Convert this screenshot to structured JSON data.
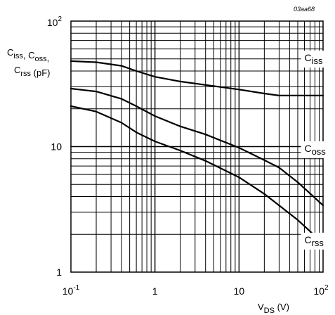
{
  "chart_data": {
    "type": "line",
    "figure_id": "03aa68",
    "x_scale": "log",
    "y_scale": "log",
    "xlim": [
      0.1,
      100
    ],
    "ylim": [
      1,
      100
    ],
    "grid": true,
    "xlabel": {
      "main": "V",
      "sub": "DS",
      "unit": " (V)"
    },
    "ylabel": {
      "line1": [
        {
          "main": "C",
          "sub": "iss"
        },
        {
          "text": ", "
        },
        {
          "main": "C",
          "sub": "oss"
        },
        {
          "text": ","
        }
      ],
      "line2": [
        {
          "main": "C",
          "sub": "rss"
        },
        {
          "text": " (pF)"
        }
      ]
    },
    "x_ticks": [
      {
        "value": 0.1,
        "base": "10",
        "exp": "-1"
      },
      {
        "value": 1,
        "base": "1",
        "exp": ""
      },
      {
        "value": 10,
        "base": "10",
        "exp": ""
      },
      {
        "value": 100,
        "base": "10",
        "exp": "2"
      }
    ],
    "y_ticks": [
      {
        "value": 1,
        "base": "1",
        "exp": ""
      },
      {
        "value": 10,
        "base": "10",
        "exp": ""
      },
      {
        "value": 100,
        "base": "10",
        "exp": "2"
      }
    ],
    "series": [
      {
        "name": "Ciss",
        "label_main": "C",
        "label_sub": "iss",
        "label_at": [
          60,
          48.5
        ],
        "x": [
          0.1,
          0.2,
          0.4,
          0.6,
          1,
          2,
          4,
          10,
          20,
          30,
          50,
          100
        ],
        "y": [
          48,
          47,
          44,
          40,
          36,
          33,
          31,
          28.5,
          26.5,
          25.5,
          25.5,
          25.5
        ]
      },
      {
        "name": "Coss",
        "label_main": "C",
        "label_sub": "oss",
        "label_at": [
          60,
          9.2
        ],
        "x": [
          0.1,
          0.2,
          0.4,
          0.6,
          1,
          2,
          4,
          10,
          20,
          30,
          50,
          100
        ],
        "y": [
          29,
          27.5,
          24,
          21,
          17.5,
          14.5,
          12.5,
          9.8,
          7.8,
          6.8,
          5.2,
          3.4
        ]
      },
      {
        "name": "Crss",
        "label_main": "C",
        "label_sub": "rss",
        "label_at": [
          60,
          1.72
        ],
        "x": [
          0.1,
          0.2,
          0.4,
          0.6,
          1,
          2,
          4,
          10,
          20,
          30,
          50,
          100
        ],
        "y": [
          21,
          19,
          15.5,
          13,
          11,
          9.3,
          7.7,
          5.7,
          4.2,
          3.4,
          2.6,
          1.7
        ]
      }
    ]
  }
}
